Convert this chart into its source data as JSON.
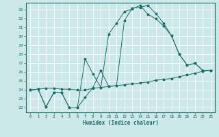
{
  "xlabel": "Humidex (Indice chaleur)",
  "bg_color": "#cce8e8",
  "line_color": "#1a6e6a",
  "grid_color": "#ffffff",
  "xlim": [
    -0.5,
    23.5
  ],
  "ylim": [
    21.5,
    33.8
  ],
  "yticks": [
    22,
    23,
    24,
    25,
    26,
    27,
    28,
    29,
    30,
    31,
    32,
    33
  ],
  "xticks": [
    0,
    1,
    2,
    3,
    4,
    5,
    6,
    7,
    8,
    9,
    10,
    11,
    12,
    13,
    14,
    15,
    16,
    17,
    18,
    19,
    20,
    21,
    22,
    23
  ],
  "line1_x": [
    0,
    1,
    2,
    3,
    4,
    5,
    6,
    7,
    8,
    9,
    10,
    11,
    12,
    13,
    14,
    15,
    16,
    17,
    18,
    19,
    20,
    21,
    22,
    23
  ],
  "line1_y": [
    24.0,
    24.1,
    24.2,
    24.2,
    24.1,
    24.1,
    24.0,
    24.0,
    24.2,
    24.3,
    24.4,
    24.5,
    24.6,
    24.7,
    24.8,
    24.9,
    25.1,
    25.2,
    25.3,
    25.5,
    25.7,
    25.9,
    26.1,
    26.2
  ],
  "line2_x": [
    0,
    1,
    2,
    3,
    4,
    5,
    6,
    7,
    8,
    9,
    10,
    11,
    12,
    13,
    14,
    15,
    16,
    17,
    18,
    19,
    20,
    21,
    22,
    23
  ],
  "line2_y": [
    24.0,
    24.1,
    22.1,
    23.7,
    23.7,
    22.0,
    22.0,
    23.2,
    24.3,
    26.2,
    24.4,
    24.5,
    31.8,
    33.2,
    33.3,
    33.5,
    32.6,
    31.5,
    30.1,
    28.0,
    26.8,
    27.0,
    26.2,
    26.2
  ],
  "line3_x": [
    0,
    1,
    2,
    3,
    4,
    5,
    6,
    7,
    8,
    9,
    10,
    11,
    12,
    13,
    14,
    15,
    16,
    17,
    18,
    19,
    20,
    21,
    22,
    23
  ],
  "line3_y": [
    24.0,
    24.1,
    22.1,
    23.7,
    23.7,
    22.0,
    22.0,
    27.5,
    25.8,
    24.3,
    30.3,
    31.5,
    32.8,
    33.1,
    33.5,
    32.5,
    32.0,
    31.2,
    30.1,
    28.0,
    26.8,
    27.0,
    26.2,
    26.2
  ]
}
